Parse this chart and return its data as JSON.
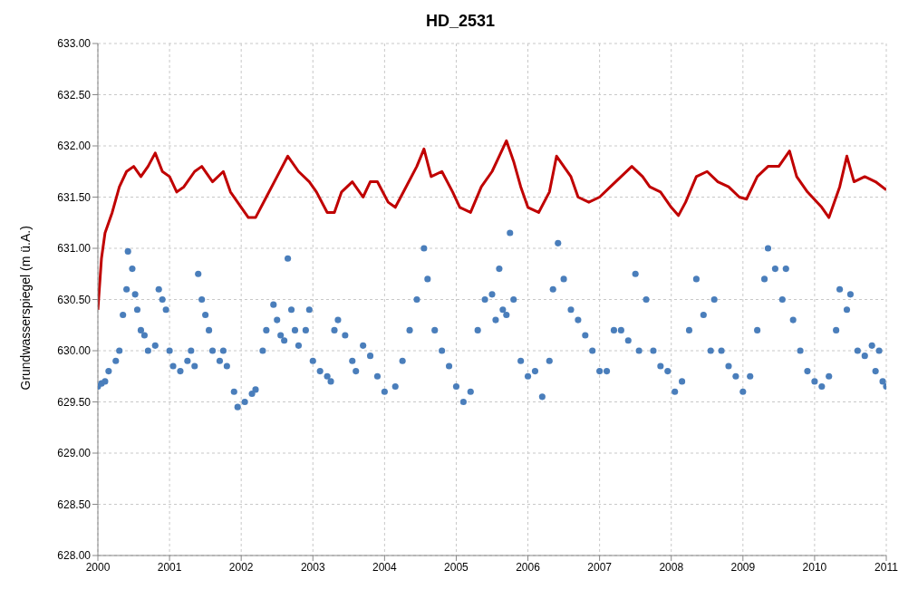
{
  "chart_data": {
    "type": "line",
    "title": "HD_2531",
    "ylabel": "Grundwasserspiegel (m ü.A.)",
    "xlim": [
      2000,
      2011
    ],
    "xticks": [
      2000,
      2001,
      2002,
      2003,
      2004,
      2005,
      2006,
      2007,
      2008,
      2009,
      2010,
      2011
    ],
    "ylim": [
      628,
      633
    ],
    "yticks": [
      {
        "value": 628,
        "label": "628.00"
      },
      {
        "value": 628.5,
        "label": "628.50"
      },
      {
        "value": 629,
        "label": "629.00"
      },
      {
        "value": 629.5,
        "label": "629.50"
      },
      {
        "value": 630,
        "label": "630.00"
      },
      {
        "value": 630.5,
        "label": "630.50"
      },
      {
        "value": 631,
        "label": "631.00"
      },
      {
        "value": 631.5,
        "label": "631.50"
      },
      {
        "value": 632,
        "label": "632.00"
      },
      {
        "value": 632.5,
        "label": "632.50"
      },
      {
        "value": 633,
        "label": "633.00"
      }
    ],
    "grid": true,
    "line_style": "solid",
    "series": [
      {
        "color": "#c00000",
        "x": [
          2000.0,
          2000.05,
          2000.1,
          2000.2,
          2000.3,
          2000.4,
          2000.5,
          2000.6,
          2000.7,
          2000.8,
          2000.9,
          2001.0,
          2001.1,
          2001.2,
          2001.35,
          2001.45,
          2001.6,
          2001.75,
          2001.85,
          2002.0,
          2002.1,
          2002.2,
          2002.35,
          2002.5,
          2002.65,
          2002.8,
          2002.95,
          2003.05,
          2003.2,
          2003.3,
          2003.4,
          2003.55,
          2003.7,
          2003.8,
          2003.9,
          2004.05,
          2004.15,
          2004.3,
          2004.45,
          2004.55,
          2004.65,
          2004.8,
          2004.95,
          2005.05,
          2005.2,
          2005.35,
          2005.5,
          2005.6,
          2005.7,
          2005.8,
          2005.9,
          2006.0,
          2006.15,
          2006.3,
          2006.4,
          2006.5,
          2006.6,
          2006.7,
          2006.85,
          2007.0,
          2007.15,
          2007.3,
          2007.45,
          2007.6,
          2007.7,
          2007.85,
          2008.0,
          2008.1,
          2008.2,
          2008.35,
          2008.5,
          2008.65,
          2008.8,
          2008.95,
          2009.05,
          2009.2,
          2009.35,
          2009.5,
          2009.65,
          2009.75,
          2009.9,
          2010.1,
          2010.2,
          2010.35,
          2010.45,
          2010.55,
          2010.7,
          2010.85,
          2011.0
        ],
        "values": [
          630.4,
          630.9,
          631.15,
          631.35,
          631.6,
          631.75,
          631.8,
          631.7,
          631.8,
          631.93,
          631.75,
          631.7,
          631.55,
          631.6,
          631.75,
          631.8,
          631.65,
          631.75,
          631.55,
          631.4,
          631.3,
          631.3,
          631.5,
          631.7,
          631.9,
          631.75,
          631.65,
          631.55,
          631.35,
          631.35,
          631.55,
          631.65,
          631.5,
          631.65,
          631.65,
          631.45,
          631.4,
          631.6,
          631.8,
          631.97,
          631.7,
          631.75,
          631.55,
          631.4,
          631.35,
          631.6,
          631.75,
          631.9,
          632.05,
          631.85,
          631.6,
          631.4,
          631.35,
          631.55,
          631.9,
          631.8,
          631.7,
          631.5,
          631.45,
          631.5,
          631.6,
          631.7,
          631.8,
          631.7,
          631.6,
          631.55,
          631.4,
          631.32,
          631.45,
          631.7,
          631.75,
          631.65,
          631.6,
          631.5,
          631.48,
          631.7,
          631.8,
          631.8,
          631.95,
          631.7,
          631.55,
          631.4,
          631.3,
          631.6,
          631.9,
          631.65,
          631.7,
          631.65,
          631.57
        ]
      },
      {
        "type": "scatter",
        "marker": "circle",
        "color": "#4a7ebb",
        "x": [
          2000.0,
          2000.05,
          2000.1,
          2000.15,
          2000.25,
          2000.3,
          2000.35,
          2000.4,
          2000.42,
          2000.48,
          2000.52,
          2000.55,
          2000.6,
          2000.65,
          2000.7,
          2000.8,
          2000.85,
          2000.9,
          2000.95,
          2001.0,
          2001.05,
          2001.15,
          2001.25,
          2001.3,
          2001.35,
          2001.4,
          2001.45,
          2001.5,
          2001.55,
          2001.6,
          2001.7,
          2001.75,
          2001.8,
          2001.9,
          2001.95,
          2002.05,
          2002.15,
          2002.2,
          2002.3,
          2002.35,
          2002.45,
          2002.5,
          2002.55,
          2002.6,
          2002.65,
          2002.7,
          2002.75,
          2002.8,
          2002.9,
          2002.95,
          2003.0,
          2003.1,
          2003.2,
          2003.25,
          2003.3,
          2003.35,
          2003.45,
          2003.55,
          2003.6,
          2003.7,
          2003.8,
          2003.9,
          2004.0,
          2004.15,
          2004.25,
          2004.35,
          2004.45,
          2004.55,
          2004.6,
          2004.7,
          2004.8,
          2004.9,
          2005.0,
          2005.1,
          2005.2,
          2005.3,
          2005.4,
          2005.5,
          2005.55,
          2005.6,
          2005.65,
          2005.7,
          2005.75,
          2005.8,
          2005.9,
          2006.0,
          2006.1,
          2006.2,
          2006.3,
          2006.35,
          2006.42,
          2006.5,
          2006.6,
          2006.7,
          2006.8,
          2006.9,
          2007.0,
          2007.1,
          2007.2,
          2007.3,
          2007.4,
          2007.5,
          2007.55,
          2007.65,
          2007.75,
          2007.85,
          2007.95,
          2008.05,
          2008.15,
          2008.25,
          2008.35,
          2008.45,
          2008.55,
          2008.6,
          2008.7,
          2008.8,
          2008.9,
          2009.0,
          2009.1,
          2009.2,
          2009.3,
          2009.35,
          2009.45,
          2009.55,
          2009.6,
          2009.7,
          2009.8,
          2009.9,
          2010.0,
          2010.1,
          2010.2,
          2010.3,
          2010.35,
          2010.45,
          2010.5,
          2010.6,
          2010.7,
          2010.8,
          2010.85,
          2010.9,
          2010.95,
          2011.0
        ],
        "values": [
          629.65,
          629.68,
          629.7,
          629.8,
          629.9,
          630.0,
          630.35,
          630.6,
          630.97,
          630.8,
          630.55,
          630.4,
          630.2,
          630.15,
          630.0,
          630.05,
          630.6,
          630.5,
          630.4,
          630.0,
          629.85,
          629.8,
          629.9,
          630.0,
          629.85,
          630.75,
          630.5,
          630.35,
          630.2,
          630.0,
          629.9,
          630.0,
          629.85,
          629.6,
          629.45,
          629.5,
          629.58,
          629.62,
          630.0,
          630.2,
          630.45,
          630.3,
          630.15,
          630.1,
          630.9,
          630.4,
          630.2,
          630.05,
          630.2,
          630.4,
          629.9,
          629.8,
          629.75,
          629.7,
          630.2,
          630.3,
          630.15,
          629.9,
          629.8,
          630.05,
          629.95,
          629.75,
          629.6,
          629.65,
          629.9,
          630.2,
          630.5,
          631.0,
          630.7,
          630.2,
          630.0,
          629.85,
          629.65,
          629.5,
          629.6,
          630.2,
          630.5,
          630.55,
          630.3,
          630.8,
          630.4,
          630.35,
          631.15,
          630.5,
          629.9,
          629.75,
          629.8,
          629.55,
          629.9,
          630.6,
          631.05,
          630.7,
          630.4,
          630.3,
          630.15,
          630.0,
          629.8,
          629.8,
          630.2,
          630.2,
          630.1,
          630.75,
          630.0,
          630.5,
          630.0,
          629.85,
          629.8,
          629.6,
          629.7,
          630.2,
          630.7,
          630.35,
          630.0,
          630.5,
          630.0,
          629.85,
          629.75,
          629.6,
          629.75,
          630.2,
          630.7,
          631.0,
          630.8,
          630.5,
          630.8,
          630.3,
          630.0,
          629.8,
          629.7,
          629.65,
          629.75,
          630.2,
          630.6,
          630.4,
          630.55,
          630.0,
          629.95,
          630.05,
          629.8,
          630.0,
          629.7,
          629.65
        ]
      }
    ]
  }
}
